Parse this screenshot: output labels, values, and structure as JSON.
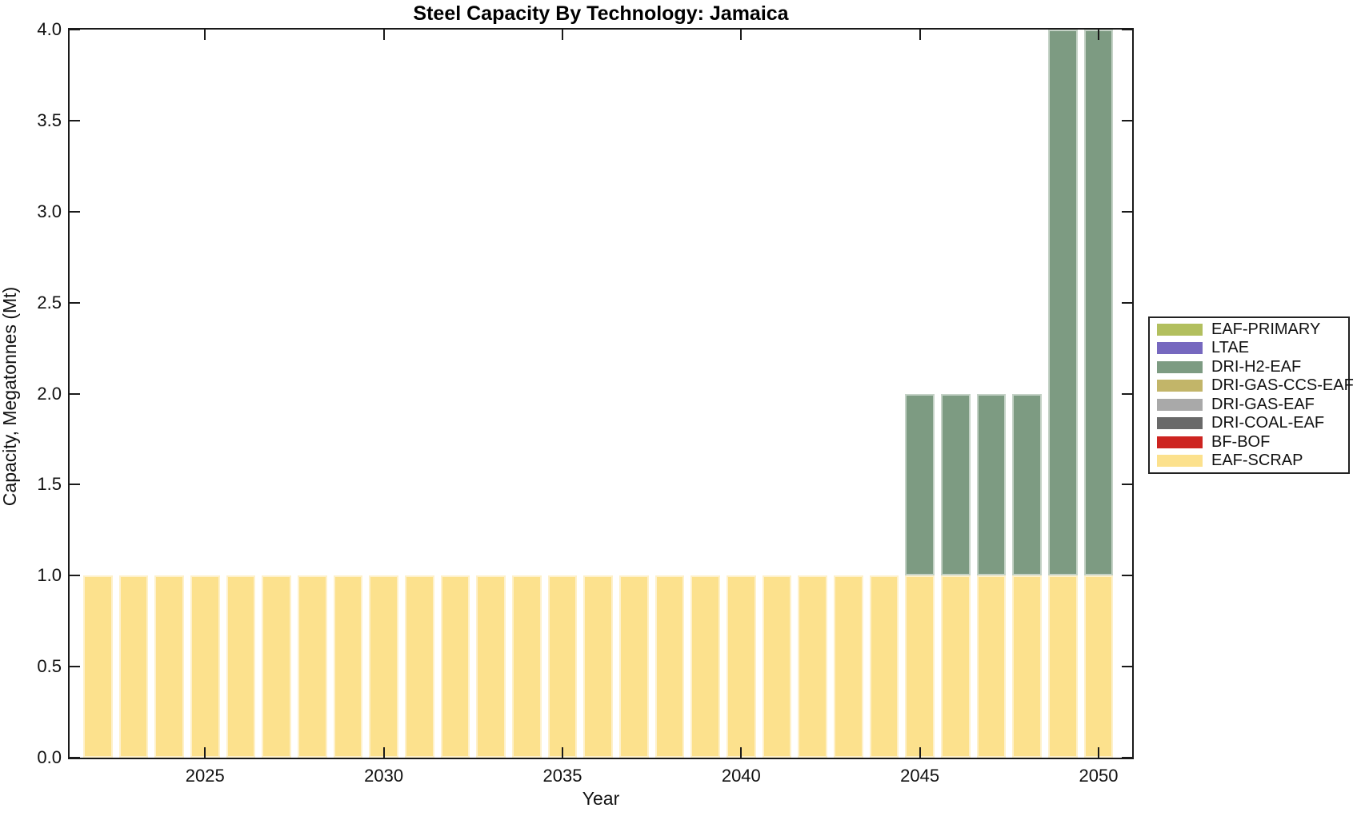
{
  "title": "Steel Capacity By Technology: Jamaica",
  "xlabel": "Year",
  "ylabel": "Capacity, Megatonnes (Mt)",
  "chart_data": {
    "type": "bar",
    "stacked": true,
    "title": "Steel Capacity By Technology: Jamaica",
    "xlabel": "Year",
    "ylabel": "Capacity, Megatonnes (Mt)",
    "categories": [
      2022,
      2023,
      2024,
      2025,
      2026,
      2027,
      2028,
      2029,
      2030,
      2031,
      2032,
      2033,
      2034,
      2035,
      2036,
      2037,
      2038,
      2039,
      2040,
      2041,
      2042,
      2043,
      2044,
      2045,
      2046,
      2047,
      2048,
      2049,
      2050
    ],
    "series": [
      {
        "name": "EAF-SCRAP",
        "color": "#fce18d",
        "values": [
          1,
          1,
          1,
          1,
          1,
          1,
          1,
          1,
          1,
          1,
          1,
          1,
          1,
          1,
          1,
          1,
          1,
          1,
          1,
          1,
          1,
          1,
          1,
          1,
          1,
          1,
          1,
          1,
          1
        ]
      },
      {
        "name": "DRI-H2-EAF",
        "color": "#7d9b82",
        "values": [
          0,
          0,
          0,
          0,
          0,
          0,
          0,
          0,
          0,
          0,
          0,
          0,
          0,
          0,
          0,
          0,
          0,
          0,
          0,
          0,
          0,
          0,
          0,
          1,
          1,
          1,
          1,
          3,
          3
        ]
      }
    ],
    "xlim": [
      2021.21,
      2050.94
    ],
    "ylim": [
      0,
      4
    ],
    "xticks": [
      2025,
      2030,
      2035,
      2040,
      2045,
      2050
    ],
    "yticks": [
      0,
      0.5,
      1,
      1.5,
      2,
      2.5,
      3,
      3.5,
      4
    ],
    "ytick_decimals": 1,
    "bar_width_fraction": 0.826,
    "grid": false,
    "legend_position": "outside-right"
  },
  "legend": {
    "entries": [
      {
        "label": "EAF-PRIMARY",
        "color": "#b2bf5e",
        "icon": "swatch-icon"
      },
      {
        "label": "LTAE",
        "color": "#7668bf",
        "icon": "swatch-icon"
      },
      {
        "label": "DRI-H2-EAF",
        "color": "#7d9b82",
        "icon": "swatch-icon"
      },
      {
        "label": "DRI-GAS-CCS-EAF",
        "color": "#c2b569",
        "icon": "swatch-icon"
      },
      {
        "label": "DRI-GAS-EAF",
        "color": "#a9a9a9",
        "icon": "swatch-icon"
      },
      {
        "label": "DRI-COAL-EAF",
        "color": "#696969",
        "icon": "swatch-icon"
      },
      {
        "label": "BF-BOF",
        "color": "#cd2420",
        "icon": "swatch-icon"
      },
      {
        "label": "EAF-SCRAP",
        "color": "#fce18d",
        "icon": "swatch-icon"
      }
    ]
  },
  "colors": {
    "axis": "#1a1a1a",
    "background": "#ffffff",
    "tick_label": "#111111"
  }
}
